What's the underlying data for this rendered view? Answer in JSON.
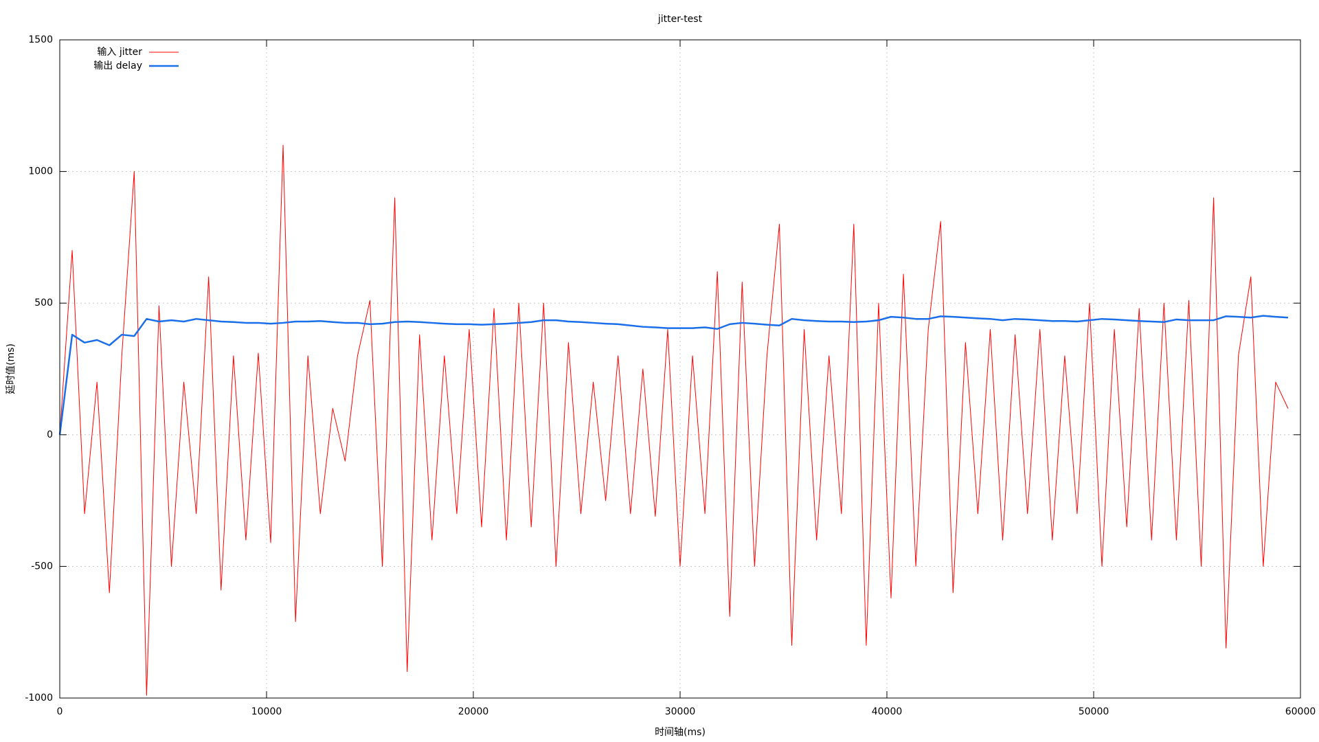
{
  "chart_data": {
    "type": "line",
    "title": "jitter-test",
    "x_label": "时间轴(ms)",
    "y_label": "延时值(ms)",
    "x": [
      0,
      600,
      1200,
      1800,
      2400,
      3000,
      3600,
      4200,
      4800,
      5400,
      6000,
      6600,
      7200,
      7800,
      8400,
      9000,
      9600,
      10200,
      10800,
      11400,
      12000,
      12600,
      13200,
      13800,
      14400,
      15000,
      15600,
      16200,
      16800,
      17400,
      18000,
      18600,
      19200,
      19800,
      20400,
      21000,
      21600,
      22200,
      22800,
      23400,
      24000,
      24600,
      25200,
      25800,
      26400,
      27000,
      27600,
      28200,
      28800,
      29400,
      30000,
      30600,
      31200,
      31800,
      32400,
      33000,
      33600,
      34200,
      34800,
      35400,
      36000,
      36600,
      37200,
      37800,
      38400,
      39000,
      39600,
      40200,
      40800,
      41400,
      42000,
      42600,
      43200,
      43800,
      44400,
      45000,
      45600,
      46200,
      46800,
      47400,
      48000,
      48600,
      49200,
      49800,
      50400,
      51000,
      51600,
      52200,
      52800,
      53400,
      54000,
      54600,
      55200,
      55800,
      56400,
      57000,
      57600,
      58200,
      58800,
      59400
    ],
    "series": [
      {
        "name": "输入 jitter",
        "color": "#ff0000",
        "width": 1,
        "values": [
          0,
          700,
          -300,
          200,
          -600,
          300,
          1000,
          -990,
          490,
          -500,
          200,
          -300,
          600,
          -590,
          300,
          -400,
          310,
          -410,
          1100,
          -710,
          300,
          -300,
          100,
          -100,
          300,
          510,
          -500,
          900,
          -900,
          380,
          -400,
          300,
          -300,
          400,
          -350,
          480,
          -400,
          500,
          -350,
          500,
          -500,
          350,
          -300,
          200,
          -250,
          300,
          -300,
          250,
          -310,
          400,
          -500,
          300,
          -300,
          620,
          -690,
          580,
          -500,
          300,
          800,
          -800,
          400,
          -400,
          300,
          -300,
          800,
          -800,
          500,
          -620,
          610,
          -500,
          400,
          810,
          -600,
          350,
          -300,
          400,
          -400,
          380,
          -300,
          400,
          -400,
          300,
          -300,
          500,
          -500,
          400,
          -350,
          480,
          -400,
          500,
          -400,
          510,
          -500,
          900,
          -810,
          300,
          600,
          -500,
          200,
          100
        ]
      },
      {
        "name": "输出 delay",
        "color": "#1a6eea",
        "width": 2.5,
        "values": [
          0,
          380,
          350,
          360,
          340,
          380,
          375,
          440,
          430,
          435,
          430,
          440,
          435,
          430,
          428,
          425,
          425,
          422,
          425,
          430,
          430,
          432,
          428,
          425,
          425,
          420,
          422,
          428,
          430,
          428,
          425,
          422,
          420,
          420,
          418,
          420,
          422,
          425,
          428,
          435,
          435,
          430,
          428,
          425,
          422,
          420,
          415,
          410,
          408,
          405,
          405,
          405,
          408,
          402,
          420,
          425,
          422,
          418,
          415,
          440,
          435,
          432,
          430,
          430,
          428,
          430,
          435,
          448,
          445,
          440,
          440,
          450,
          448,
          445,
          442,
          440,
          435,
          440,
          438,
          435,
          432,
          432,
          430,
          435,
          440,
          438,
          435,
          432,
          430,
          428,
          438,
          435,
          435,
          435,
          450,
          448,
          445,
          452,
          448,
          445
        ]
      }
    ],
    "xlim": [
      0,
      60000
    ],
    "xticks": [
      0,
      10000,
      20000,
      30000,
      40000,
      50000,
      60000
    ],
    "ylim": [
      -1000,
      1500
    ],
    "yticks": [
      -1000,
      -500,
      0,
      500,
      1000,
      1500
    ],
    "grid": true,
    "legend": "top-left"
  }
}
